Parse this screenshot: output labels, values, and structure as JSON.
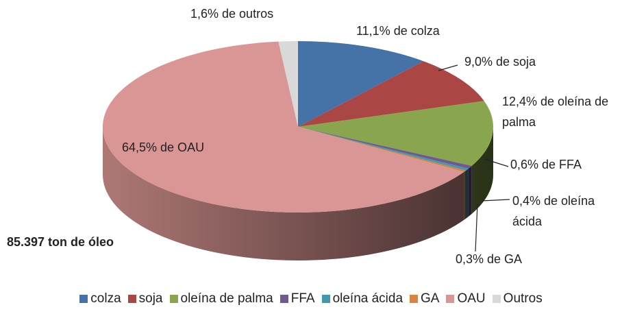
{
  "chart_data": {
    "type": "pie",
    "categories": [
      "colza",
      "soja",
      "oleína de palma",
      "FFA",
      "oleína ácida",
      "GA",
      "OAU",
      "Outros"
    ],
    "values": [
      11.1,
      9.0,
      12.4,
      0.6,
      0.4,
      0.3,
      64.5,
      1.6
    ],
    "value_labels": [
      "11,1% de colza",
      "9,0% de soja",
      "12,4% de oleína de palma",
      "0,6% de FFA",
      "0,4% de oleína ácida",
      "0,3% de GA",
      "64,5% de OAU",
      "1,6% de outros"
    ],
    "colors": [
      "#4572a7",
      "#aa4643",
      "#89a54e",
      "#71588f",
      "#4198af",
      "#db843d",
      "#d99694",
      "#d9d9d9"
    ],
    "annotation": "85.397 ton de óleo",
    "legend": "bottom"
  }
}
